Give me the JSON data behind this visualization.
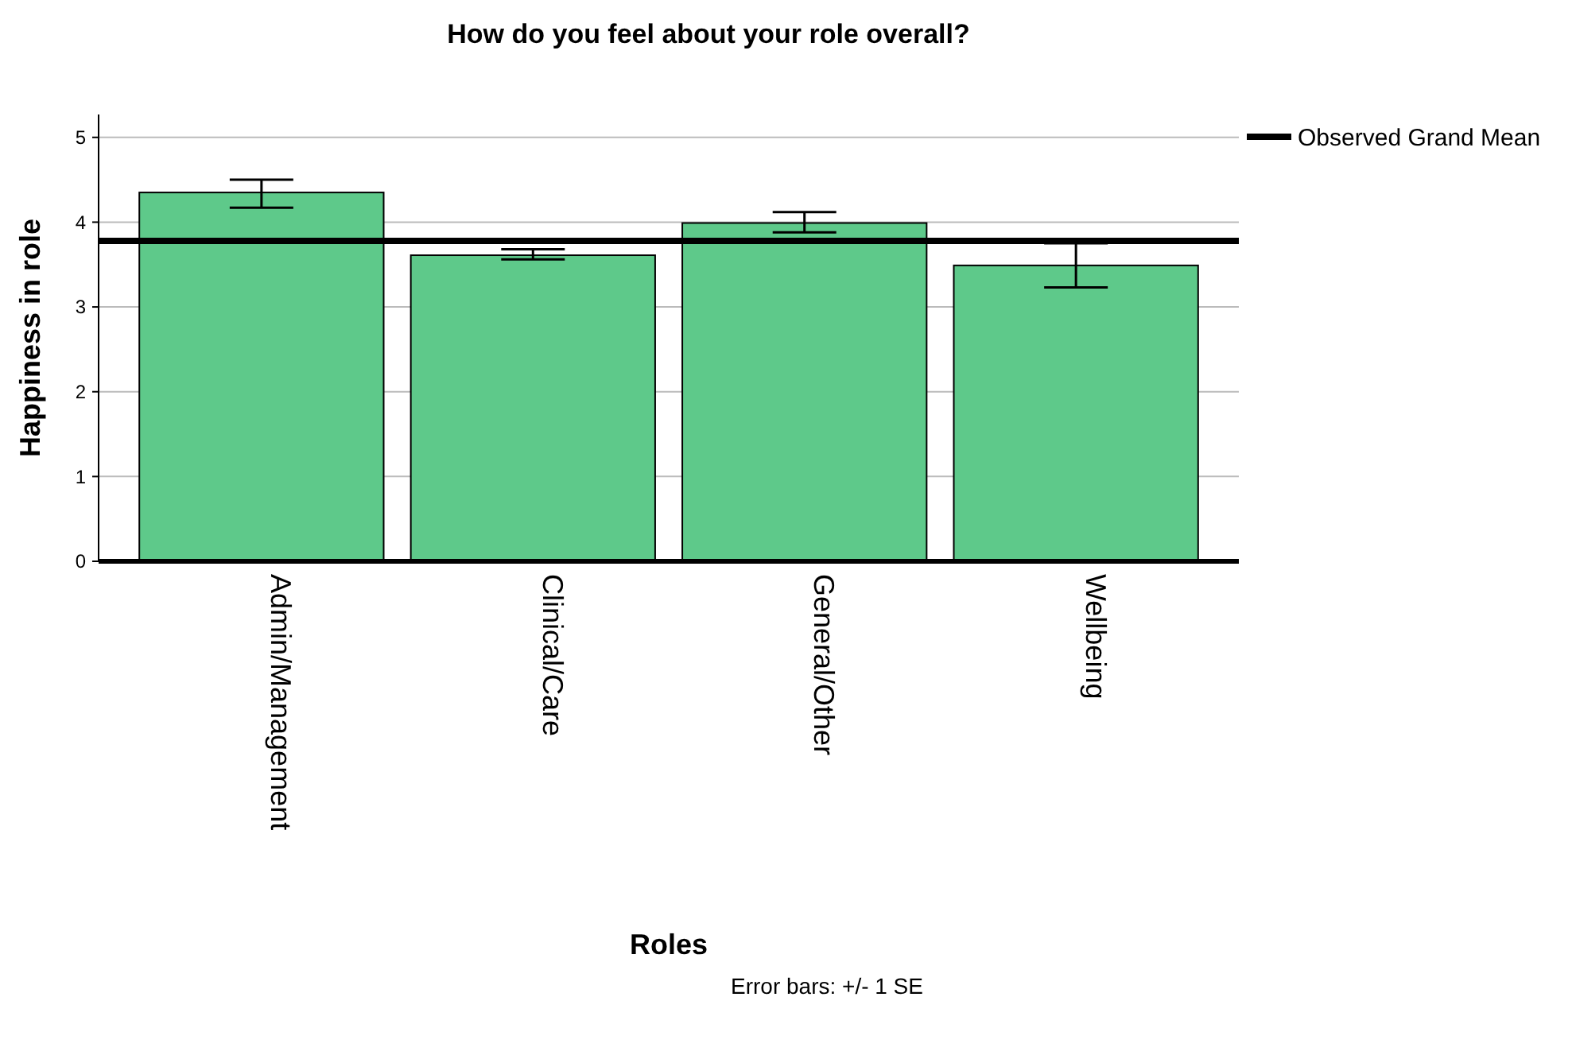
{
  "chart_data": {
    "type": "bar",
    "title": "How do you feel about your role overall?",
    "xlabel": "Roles",
    "ylabel": "Happiness in role",
    "categories": [
      "Admin/Management",
      "Clinical/Care",
      "General/Other",
      "Wellbeing"
    ],
    "values": [
      4.35,
      3.61,
      3.99,
      3.49
    ],
    "errors": [
      [
        4.17,
        4.5
      ],
      [
        3.56,
        3.68
      ],
      [
        3.88,
        4.12
      ],
      [
        3.23,
        3.75
      ]
    ],
    "color": "#5ec98a",
    "ylim": [
      0,
      5.27
    ],
    "yticks": [
      0,
      1,
      2,
      3,
      4,
      5
    ],
    "grid": "y",
    "ref_lines": [
      {
        "axis": "y",
        "value": 3.78,
        "label": "Observed Grand Mean",
        "color": "#000000"
      }
    ],
    "legend": "top right",
    "annotations": [
      "Error bars: +/- 1 SE"
    ]
  }
}
